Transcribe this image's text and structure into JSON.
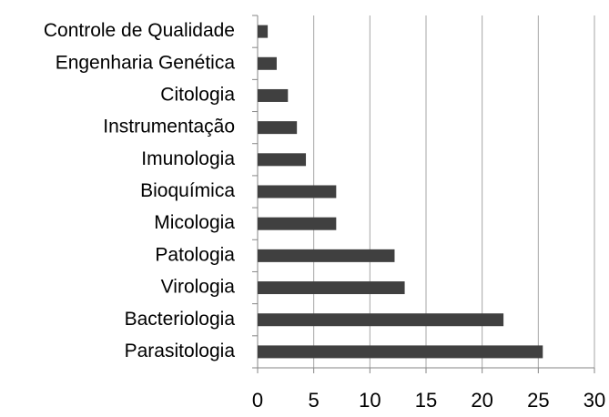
{
  "chart_data": {
    "type": "barh",
    "categories": [
      "Controle de Qualidade",
      "Engenharia Genética",
      "Citologia",
      "Instrumentação",
      "Imunologia",
      "Bioquímica",
      "Micologia",
      "Patologia",
      "Virologia",
      "Bacteriologia",
      "Parasitologia"
    ],
    "values": [
      0.9,
      1.7,
      2.7,
      3.5,
      4.3,
      7.0,
      7.0,
      12.2,
      13.1,
      21.9,
      25.4
    ],
    "color": "#404040",
    "xlim": [
      0,
      30
    ],
    "xticks": [
      0,
      5,
      10,
      15,
      20,
      25,
      30
    ],
    "grid": true
  }
}
